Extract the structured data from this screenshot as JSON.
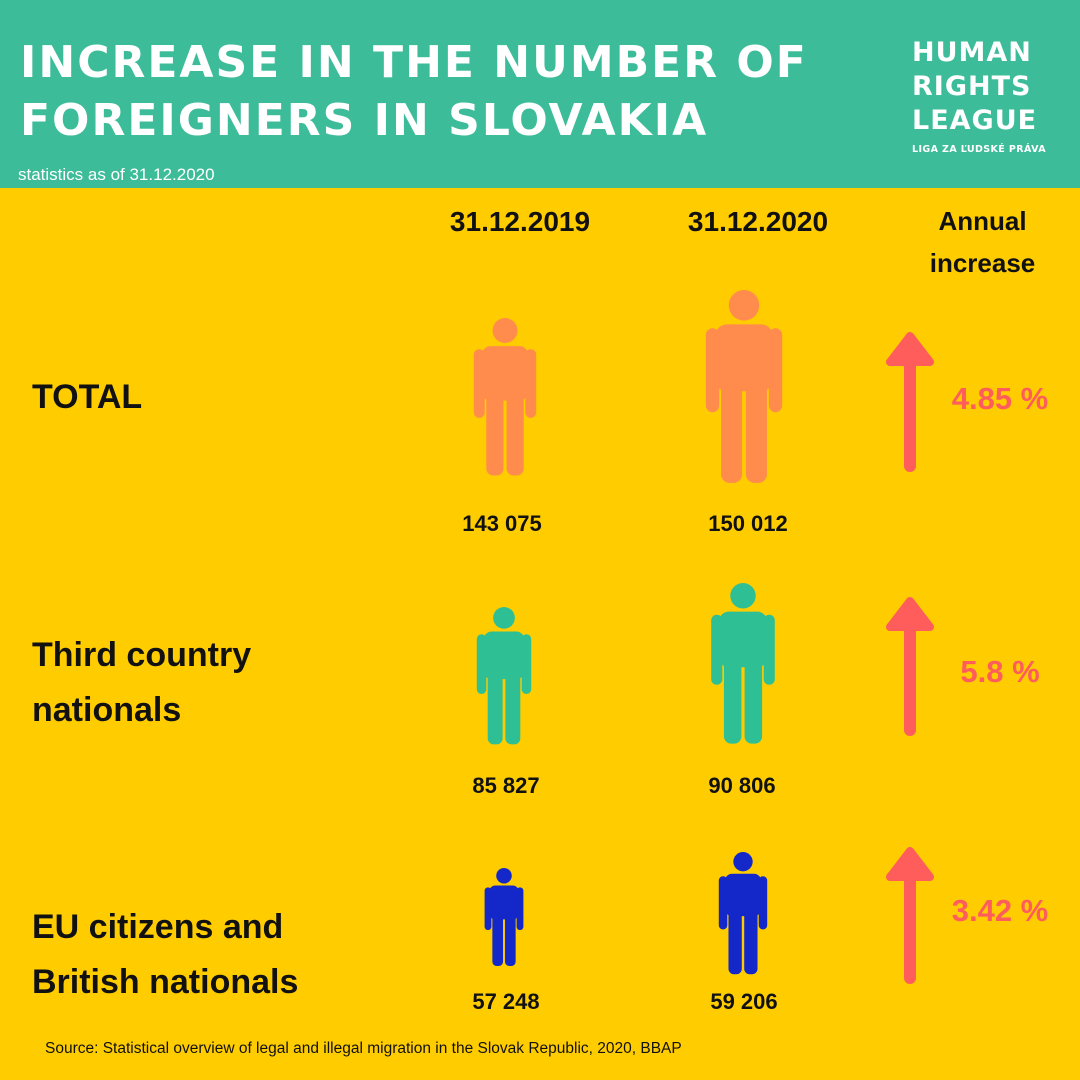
{
  "header": {
    "title_line1": "INCREASE IN THE NUMBER OF",
    "title_line2": "FOREIGNERS IN SLOVAKIA",
    "subtitle": "statistics as of 31.12.2020"
  },
  "logo": {
    "line1": "HUMAN",
    "line2": "RIGHTS",
    "line3": "LEAGUE",
    "tagline": "LIGA ZA ĽUDSKÉ PRÁVA"
  },
  "columns": {
    "year1": "31.12.2019",
    "year2": "31.12.2020",
    "increase_line1": "Annual",
    "increase_line2": "increase"
  },
  "rows": [
    {
      "label_line1": "TOTAL",
      "label_line2": "",
      "value_2019": "143 075",
      "value_2020": "150 012",
      "increase": "4.85 %"
    },
    {
      "label_line1": "Third country",
      "label_line2": "nationals",
      "value_2019": "85 827",
      "value_2020": "90 806",
      "increase": "5.8 %"
    },
    {
      "label_line1": "EU citizens and",
      "label_line2": "British nationals",
      "value_2019": "57 248",
      "value_2020": "59 206",
      "increase": "3.42 %"
    }
  ],
  "source": "Source: Statistical overview of legal and illegal migration in the Slovak Republic, 2020, BBAP",
  "colors": {
    "header_bg": "#3dbc9a",
    "background": "#ffcc00",
    "total": "#ff8c4c",
    "third_country": "#2fbf95",
    "eu": "#1427c8",
    "arrow": "#ff5c5c"
  },
  "chart_data": {
    "type": "table",
    "categories": [
      "31.12.2019",
      "31.12.2020"
    ],
    "series": [
      {
        "name": "TOTAL",
        "values": [
          143075,
          150012
        ],
        "increase_pct": 4.85
      },
      {
        "name": "Third country nationals",
        "values": [
          85827,
          90806
        ],
        "increase_pct": 5.8
      },
      {
        "name": "EU citizens and British nationals",
        "values": [
          57248,
          59206
        ],
        "increase_pct": 3.42
      }
    ]
  }
}
